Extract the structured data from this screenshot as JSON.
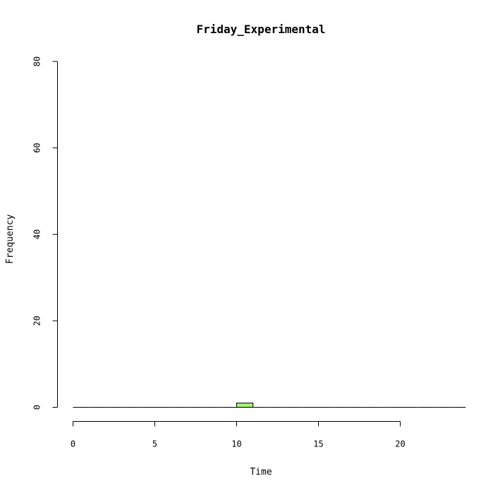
{
  "chart_data": {
    "type": "bar",
    "title": "Friday_Experimental",
    "xlabel": "Time",
    "ylabel": "Frequency",
    "xlim": [
      0,
      24
    ],
    "ylim": [
      0,
      80
    ],
    "x_ticks": [
      "0",
      "5",
      "10",
      "15",
      "20"
    ],
    "y_ticks": [
      "0",
      "20",
      "40",
      "60",
      "80"
    ],
    "bins": [
      {
        "start": 0,
        "end": 1,
        "count": 0
      },
      {
        "start": 1,
        "end": 2,
        "count": 0
      },
      {
        "start": 2,
        "end": 3,
        "count": 0
      },
      {
        "start": 3,
        "end": 4,
        "count": 0
      },
      {
        "start": 4,
        "end": 5,
        "count": 0
      },
      {
        "start": 5,
        "end": 6,
        "count": 0
      },
      {
        "start": 6,
        "end": 7,
        "count": 0
      },
      {
        "start": 7,
        "end": 8,
        "count": 0
      },
      {
        "start": 8,
        "end": 9,
        "count": 0
      },
      {
        "start": 9,
        "end": 10,
        "count": 0
      },
      {
        "start": 10,
        "end": 11,
        "count": 1
      },
      {
        "start": 11,
        "end": 12,
        "count": 0
      },
      {
        "start": 12,
        "end": 13,
        "count": 0
      },
      {
        "start": 13,
        "end": 14,
        "count": 0
      },
      {
        "start": 14,
        "end": 15,
        "count": 0
      },
      {
        "start": 15,
        "end": 16,
        "count": 0
      },
      {
        "start": 16,
        "end": 17,
        "count": 0
      },
      {
        "start": 17,
        "end": 18,
        "count": 0
      },
      {
        "start": 18,
        "end": 19,
        "count": 0
      },
      {
        "start": 19,
        "end": 20,
        "count": 0
      },
      {
        "start": 20,
        "end": 21,
        "count": 0
      },
      {
        "start": 21,
        "end": 22,
        "count": 0
      },
      {
        "start": 22,
        "end": 23,
        "count": 0
      },
      {
        "start": 23,
        "end": 24,
        "count": 0
      }
    ],
    "bar_color": "#a6ef7a",
    "grid": false,
    "legend": "none"
  }
}
